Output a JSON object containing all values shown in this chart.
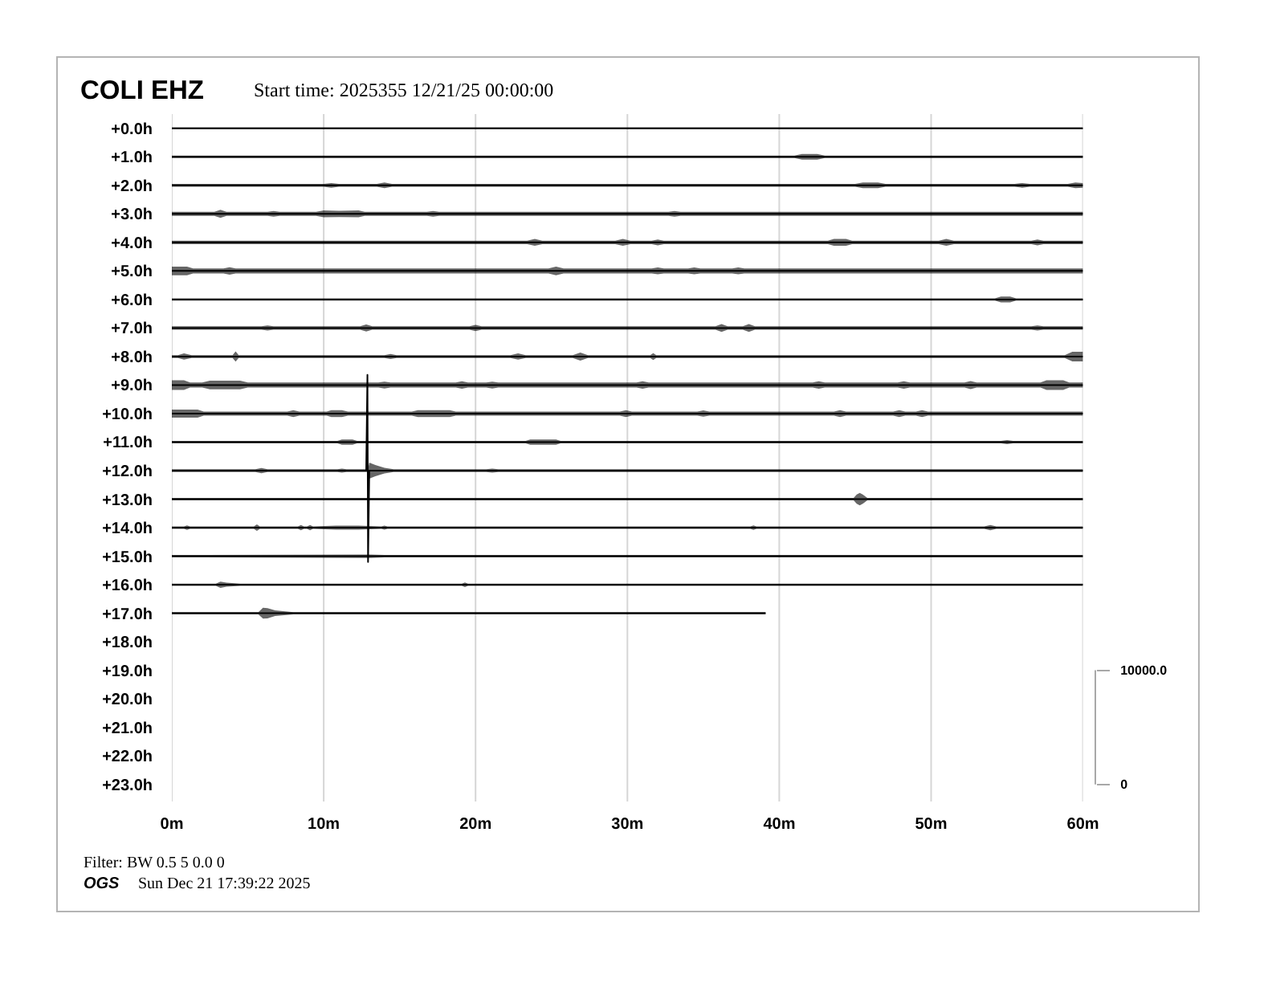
{
  "chart_data": {
    "type": "line",
    "title": "COLI EHZ",
    "subtitle": "Start time: 2025355 12/21/25 00:00:00",
    "annotations": [
      "Filter: BW 0.5 5 0.0 0",
      "OGS",
      "Sun Dec 21 17:39:22 2025"
    ],
    "xlim": [
      0,
      60
    ],
    "xticks": [
      {
        "value": 0,
        "label": "0m"
      },
      {
        "value": 10,
        "label": "10m"
      },
      {
        "value": 20,
        "label": "20m"
      },
      {
        "value": 30,
        "label": "30m"
      },
      {
        "value": 40,
        "label": "40m"
      },
      {
        "value": 50,
        "label": "50m"
      },
      {
        "value": 60,
        "label": "60m"
      }
    ],
    "ylim": [
      23.6,
      -0.5
    ],
    "yticks": [
      {
        "value": 0,
        "label": "+0.0h"
      },
      {
        "value": 1,
        "label": "+1.0h"
      },
      {
        "value": 2,
        "label": "+2.0h"
      },
      {
        "value": 3,
        "label": "+3.0h"
      },
      {
        "value": 4,
        "label": "+4.0h"
      },
      {
        "value": 5,
        "label": "+5.0h"
      },
      {
        "value": 6,
        "label": "+6.0h"
      },
      {
        "value": 7,
        "label": "+7.0h"
      },
      {
        "value": 8,
        "label": "+8.0h"
      },
      {
        "value": 9,
        "label": "+9.0h"
      },
      {
        "value": 10,
        "label": "+10.0h"
      },
      {
        "value": 11,
        "label": "+11.0h"
      },
      {
        "value": 12,
        "label": "+12.0h"
      },
      {
        "value": 13,
        "label": "+13.0h"
      },
      {
        "value": 14,
        "label": "+14.0h"
      },
      {
        "value": 15,
        "label": "+15.0h"
      },
      {
        "value": 16,
        "label": "+16.0h"
      },
      {
        "value": 17,
        "label": "+17.0h"
      },
      {
        "value": 18,
        "label": "+18.0h"
      },
      {
        "value": 19,
        "label": "+19.0h"
      },
      {
        "value": 20,
        "label": "+20.0h"
      },
      {
        "value": 21,
        "label": "+21.0h"
      },
      {
        "value": 22,
        "label": "+22.0h"
      },
      {
        "value": 23,
        "label": "+23.0h"
      }
    ],
    "y2lim": [
      -1500,
      58750
    ],
    "y2ticks": [
      {
        "value": 0,
        "label": "0"
      },
      {
        "value": 10000,
        "label": "10000.0"
      }
    ],
    "grid": "x",
    "series": [
      {
        "color": "#000000",
        "x": [
          0,
          30,
          60
        ],
        "values": [
          0,
          0,
          0
        ],
        "lower": [
          -0.03,
          -0.03,
          -0.03
        ],
        "upper": [
          0.03,
          0.03,
          0.03
        ]
      },
      {
        "color": "#000000",
        "x": [
          0,
          41,
          41.5,
          42.5,
          43,
          60
        ],
        "values": [
          1,
          1,
          1,
          1,
          1,
          1
        ],
        "lower": [
          0.96,
          0.96,
          0.9,
          0.9,
          0.96,
          0.96
        ],
        "upper": [
          1.04,
          1.04,
          1.1,
          1.1,
          1.04,
          1.04
        ]
      },
      {
        "color": "#000000",
        "x": [
          0,
          10,
          10.5,
          11,
          13.5,
          14,
          14.5,
          45,
          45.5,
          46.5,
          47,
          55.5,
          56,
          56.5,
          59,
          59.5,
          60
        ],
        "values": [
          2,
          2,
          2,
          2,
          2,
          2,
          2,
          2,
          2,
          2,
          2,
          2,
          2,
          2,
          2,
          2,
          2
        ],
        "lower": [
          1.95,
          1.95,
          1.92,
          1.95,
          1.95,
          1.9,
          1.95,
          1.95,
          1.9,
          1.9,
          1.95,
          1.95,
          1.92,
          1.95,
          1.95,
          1.9,
          1.92
        ],
        "upper": [
          2.05,
          2.05,
          2.08,
          2.05,
          2.05,
          2.1,
          2.05,
          2.05,
          2.1,
          2.1,
          2.05,
          2.05,
          2.08,
          2.05,
          2.05,
          2.1,
          2.08
        ]
      },
      {
        "color": "#000000",
        "x": [
          0,
          2.8,
          3.2,
          3.6,
          6.3,
          6.7,
          7.1,
          9.5,
          10,
          11,
          12.3,
          12.7,
          16.8,
          17.2,
          17.6,
          32.7,
          33.1,
          33.5,
          60
        ],
        "values": [
          3,
          3,
          3,
          3,
          3,
          3,
          3,
          3,
          3,
          3,
          3,
          3,
          3,
          3,
          3,
          3,
          3,
          3,
          3
        ],
        "lower": [
          2.93,
          2.93,
          2.86,
          2.93,
          2.93,
          2.9,
          2.93,
          2.93,
          2.88,
          2.89,
          2.88,
          2.93,
          2.93,
          2.9,
          2.93,
          2.93,
          2.9,
          2.93,
          2.93
        ],
        "upper": [
          3.07,
          3.07,
          3.14,
          3.07,
          3.07,
          3.1,
          3.07,
          3.07,
          3.12,
          3.11,
          3.12,
          3.07,
          3.07,
          3.1,
          3.07,
          3.07,
          3.1,
          3.07,
          3.07
        ]
      },
      {
        "color": "#000000",
        "x": [
          0,
          23.4,
          23.9,
          24.4,
          29.2,
          29.7,
          30.2,
          31.6,
          32,
          32.4,
          43.2,
          43.6,
          44.4,
          44.8,
          50.5,
          51,
          51.5,
          56.6,
          57,
          57.4,
          60
        ],
        "values": [
          4,
          4,
          4,
          4,
          4,
          4,
          4,
          4,
          4,
          4,
          4,
          4,
          4,
          4,
          4,
          4,
          4,
          4,
          4,
          4,
          4
        ],
        "lower": [
          3.94,
          3.94,
          3.88,
          3.94,
          3.94,
          3.88,
          3.94,
          3.94,
          3.9,
          3.94,
          3.94,
          3.88,
          3.88,
          3.94,
          3.94,
          3.88,
          3.94,
          3.94,
          3.9,
          3.94,
          3.94
        ],
        "upper": [
          4.06,
          4.06,
          4.12,
          4.06,
          4.06,
          4.12,
          4.06,
          4.06,
          4.1,
          4.06,
          4.06,
          4.12,
          4.12,
          4.06,
          4.06,
          4.12,
          4.06,
          4.06,
          4.1,
          4.06,
          4.06
        ]
      },
      {
        "color": "#000000",
        "x": [
          0,
          1,
          1.4,
          3.4,
          3.8,
          4.2,
          24.8,
          25.3,
          25.8,
          31.6,
          32,
          32.4,
          34,
          34.4,
          34.8,
          36.9,
          37.3,
          37.7,
          60
        ],
        "values": [
          5,
          5,
          5,
          5,
          5,
          5,
          5,
          5,
          5,
          5,
          5,
          5,
          5,
          5,
          5,
          5,
          5,
          5,
          5
        ],
        "lower": [
          4.85,
          4.85,
          4.91,
          4.91,
          4.87,
          4.91,
          4.91,
          4.85,
          4.91,
          4.91,
          4.88,
          4.91,
          4.91,
          4.88,
          4.91,
          4.91,
          4.88,
          4.91,
          4.91
        ],
        "upper": [
          5.15,
          5.15,
          5.09,
          5.09,
          5.13,
          5.09,
          5.09,
          5.15,
          5.09,
          5.09,
          5.12,
          5.09,
          5.09,
          5.12,
          5.09,
          5.09,
          5.12,
          5.09,
          5.09
        ]
      },
      {
        "color": "#000000",
        "x": [
          0,
          54.2,
          54.6,
          55.2,
          55.6,
          60
        ],
        "values": [
          6,
          6,
          6,
          6,
          6,
          6
        ],
        "lower": [
          5.96,
          5.96,
          5.9,
          5.9,
          5.96,
          5.96
        ],
        "upper": [
          6.04,
          6.04,
          6.1,
          6.1,
          6.04,
          6.04
        ]
      },
      {
        "color": "#000000",
        "x": [
          0,
          5.9,
          6.3,
          6.7,
          12.4,
          12.8,
          13.2,
          19.6,
          20,
          20.4,
          35.8,
          36.2,
          36.6,
          37.6,
          38,
          38.4,
          56.6,
          57,
          57.4,
          60
        ],
        "values": [
          7,
          7,
          7,
          7,
          7,
          7,
          7,
          7,
          7,
          7,
          7,
          7,
          7,
          7,
          7,
          7,
          7,
          7,
          7,
          7
        ],
        "lower": [
          6.94,
          6.94,
          6.91,
          6.94,
          6.94,
          6.88,
          6.94,
          6.94,
          6.89,
          6.94,
          6.94,
          6.86,
          6.94,
          6.94,
          6.86,
          6.94,
          6.94,
          6.91,
          6.94,
          6.94
        ],
        "upper": [
          7.06,
          7.06,
          7.09,
          7.06,
          7.06,
          7.12,
          7.06,
          7.06,
          7.11,
          7.06,
          7.06,
          7.14,
          7.06,
          7.06,
          7.14,
          7.06,
          7.06,
          7.09,
          7.06,
          7.06
        ]
      },
      {
        "color": "#000000",
        "x": [
          0,
          0.4,
          0.8,
          1.3,
          4,
          4.2,
          4.4,
          14,
          14.4,
          14.8,
          22.3,
          22.8,
          23.3,
          26.4,
          26.9,
          27.4,
          31.5,
          31.7,
          31.9,
          58.8,
          59.3,
          60
        ],
        "values": [
          8,
          8,
          8,
          8,
          8,
          8,
          8,
          8,
          8,
          8,
          8,
          8,
          8,
          8,
          8,
          8,
          8,
          8,
          8,
          8,
          8,
          8
        ],
        "lower": [
          7.95,
          7.95,
          7.89,
          7.95,
          7.95,
          7.82,
          7.95,
          7.95,
          7.91,
          7.95,
          7.95,
          7.89,
          7.95,
          7.95,
          7.86,
          7.95,
          7.95,
          7.88,
          7.95,
          7.95,
          7.83,
          7.83
        ],
        "upper": [
          8.05,
          8.05,
          8.11,
          8.05,
          8.05,
          8.18,
          8.05,
          8.05,
          8.09,
          8.05,
          8.05,
          8.11,
          8.05,
          8.05,
          8.14,
          8.05,
          8.05,
          8.12,
          8.05,
          8.05,
          8.17,
          8.17
        ]
      },
      {
        "color": "#000000",
        "x": [
          0,
          0.8,
          1.2,
          2,
          2.5,
          4.5,
          5,
          13.6,
          14,
          14.4,
          18.7,
          19.1,
          19.5,
          20.7,
          21.1,
          21.5,
          30.6,
          31,
          31.4,
          42.2,
          42.6,
          43,
          47.8,
          48.2,
          48.6,
          52.2,
          52.6,
          53,
          57.2,
          57.6,
          58.7,
          59.1,
          60
        ],
        "values": [
          9,
          9,
          9,
          9,
          9,
          9,
          9,
          9,
          9,
          9,
          9,
          9,
          9,
          9,
          9,
          9,
          9,
          9,
          9,
          9,
          9,
          9,
          9,
          9,
          9,
          9,
          9,
          9,
          9,
          9,
          9,
          9,
          9
        ],
        "lower": [
          8.83,
          8.83,
          8.91,
          8.91,
          8.85,
          8.85,
          8.91,
          8.91,
          8.88,
          8.91,
          8.91,
          8.87,
          8.91,
          8.91,
          8.88,
          8.91,
          8.91,
          8.87,
          8.91,
          8.91,
          8.87,
          8.91,
          8.91,
          8.87,
          8.91,
          8.91,
          8.86,
          8.91,
          8.91,
          8.83,
          8.83,
          8.91,
          8.91
        ],
        "upper": [
          9.17,
          9.17,
          9.09,
          9.09,
          9.15,
          9.15,
          9.09,
          9.09,
          9.12,
          9.09,
          9.09,
          9.13,
          9.09,
          9.09,
          9.12,
          9.09,
          9.09,
          9.13,
          9.09,
          9.09,
          9.13,
          9.09,
          9.09,
          9.13,
          9.09,
          9.09,
          9.14,
          9.09,
          9.09,
          9.17,
          9.17,
          9.09,
          9.09
        ]
      },
      {
        "color": "#000000",
        "x": [
          0,
          1.7,
          2.1,
          7.6,
          8,
          8.4,
          10.2,
          10.5,
          11.2,
          11.6,
          15.8,
          16.2,
          18.3,
          18.7,
          29.5,
          29.9,
          30.3,
          34.6,
          35,
          35.4,
          43.6,
          44,
          44.4,
          47.5,
          47.9,
          48.3,
          49,
          49.4,
          49.8,
          60
        ],
        "values": [
          10,
          10,
          10,
          10,
          10,
          10,
          10,
          10,
          10,
          10,
          10,
          10,
          10,
          10,
          10,
          10,
          10,
          10,
          10,
          10,
          10,
          10,
          10,
          10,
          10,
          10,
          10,
          10,
          10,
          10
        ],
        "lower": [
          9.86,
          9.86,
          9.93,
          9.93,
          9.88,
          9.93,
          9.93,
          9.88,
          9.88,
          9.93,
          9.93,
          9.88,
          9.88,
          9.93,
          9.93,
          9.88,
          9.93,
          9.93,
          9.89,
          9.93,
          9.93,
          9.88,
          9.93,
          9.93,
          9.88,
          9.93,
          9.93,
          9.88,
          9.93,
          9.93
        ],
        "upper": [
          10.14,
          10.14,
          10.07,
          10.07,
          10.12,
          10.07,
          10.07,
          10.12,
          10.12,
          10.07,
          10.07,
          10.12,
          10.12,
          10.07,
          10.07,
          10.12,
          10.07,
          10.07,
          10.11,
          10.07,
          10.07,
          10.12,
          10.07,
          10.07,
          10.12,
          10.07,
          10.07,
          10.12,
          10.07,
          10.07
        ]
      },
      {
        "color": "#000000",
        "x": [
          0,
          10.9,
          11.2,
          11.9,
          12.2,
          23.3,
          23.6,
          25.3,
          25.6,
          54.6,
          55,
          55.4,
          60
        ],
        "values": [
          11,
          11,
          11,
          11,
          11,
          11,
          11,
          11,
          11,
          11,
          11,
          11,
          11
        ],
        "lower": [
          10.96,
          10.96,
          10.91,
          10.91,
          10.96,
          10.96,
          10.91,
          10.91,
          10.96,
          10.96,
          10.93,
          10.96,
          10.96
        ],
        "upper": [
          11.04,
          11.04,
          11.09,
          11.09,
          11.04,
          11.04,
          11.09,
          11.09,
          11.04,
          11.04,
          11.07,
          11.04,
          11.04
        ]
      },
      {
        "color": "#000000",
        "x": [
          0,
          5.5,
          5.9,
          6.3,
          10.9,
          11.2,
          11.5,
          12.8,
          12.88,
          12.92,
          13,
          13.4,
          14,
          14.6,
          20.7,
          21.1,
          21.5,
          60
        ],
        "values": [
          12,
          12,
          12,
          12,
          12,
          12,
          12,
          12,
          8.64,
          15.2,
          12,
          12,
          12,
          12,
          12,
          12,
          12,
          12
        ],
        "lower": [
          11.95,
          11.95,
          11.91,
          11.95,
          11.95,
          11.93,
          11.95,
          11.95,
          11.95,
          11.95,
          11.72,
          11.8,
          11.9,
          11.95,
          11.95,
          11.93,
          11.95,
          11.95
        ],
        "upper": [
          12.05,
          12.05,
          12.09,
          12.05,
          12.05,
          12.07,
          12.05,
          12.05,
          12.05,
          12.05,
          12.28,
          12.2,
          12.1,
          12.05,
          12.05,
          12.07,
          12.05,
          12.05
        ]
      },
      {
        "color": "#000000",
        "x": [
          0,
          44.9,
          45.1,
          45.3,
          45.5,
          45.8,
          60
        ],
        "values": [
          13,
          13,
          13,
          13,
          13,
          13,
          13
        ],
        "lower": [
          12.96,
          12.96,
          12.84,
          12.78,
          12.84,
          12.96,
          12.96
        ],
        "upper": [
          13.04,
          13.04,
          13.16,
          13.22,
          13.16,
          13.04,
          13.04
        ]
      },
      {
        "color": "#000000",
        "x": [
          0,
          0.8,
          1,
          1.2,
          5.4,
          5.6,
          5.8,
          8.3,
          8.5,
          8.7,
          8.9,
          9.1,
          9.3,
          10.8,
          12.3,
          13.8,
          14,
          14.2,
          38.1,
          38.3,
          38.5,
          53.5,
          53.9,
          54.3,
          60
        ],
        "values": [
          14,
          14,
          14,
          14,
          14,
          14,
          14,
          14,
          14,
          14,
          14,
          14,
          14,
          14,
          14,
          14,
          14,
          14,
          14,
          14,
          14,
          14,
          14,
          14,
          14
        ],
        "lower": [
          13.96,
          13.96,
          13.92,
          13.96,
          13.96,
          13.89,
          13.96,
          13.96,
          13.91,
          13.96,
          13.96,
          13.91,
          13.96,
          13.93,
          13.93,
          13.96,
          13.93,
          13.96,
          13.96,
          13.92,
          13.96,
          13.96,
          13.91,
          13.96,
          13.96
        ],
        "upper": [
          14.04,
          14.04,
          14.08,
          14.04,
          14.04,
          14.11,
          14.04,
          14.04,
          14.09,
          14.04,
          14.04,
          14.09,
          14.04,
          14.07,
          14.07,
          14.04,
          14.07,
          14.04,
          14.04,
          14.08,
          14.04,
          14.04,
          14.09,
          14.04,
          14.04
        ]
      },
      {
        "color": "#000000",
        "x": [
          0,
          13,
          14,
          60
        ],
        "values": [
          15,
          15,
          15,
          15
        ],
        "lower": [
          14.96,
          14.94,
          14.96,
          14.96
        ],
        "upper": [
          15.04,
          15.06,
          15.04,
          15.04
        ]
      },
      {
        "color": "#000000",
        "x": [
          0,
          2.9,
          3.2,
          3.6,
          4.5,
          19.1,
          19.3,
          19.5,
          60
        ],
        "values": [
          16,
          16,
          16,
          16,
          16,
          16,
          16,
          16,
          16
        ],
        "lower": [
          15.96,
          15.96,
          15.89,
          15.93,
          15.96,
          15.96,
          15.92,
          15.96,
          15.96
        ],
        "upper": [
          16.04,
          16.04,
          16.11,
          16.07,
          16.04,
          16.04,
          16.08,
          16.04,
          16.04
        ]
      },
      {
        "color": "#000000",
        "x": [
          0,
          5.7,
          6,
          6.3,
          6.8,
          8,
          39.1
        ],
        "values": [
          17,
          17,
          17,
          17,
          17,
          17,
          17
        ],
        "lower": [
          16.96,
          16.96,
          16.81,
          16.82,
          16.9,
          16.96,
          16.96
        ],
        "upper": [
          17.04,
          17.04,
          17.19,
          17.18,
          17.1,
          17.04,
          17.04
        ]
      }
    ]
  }
}
